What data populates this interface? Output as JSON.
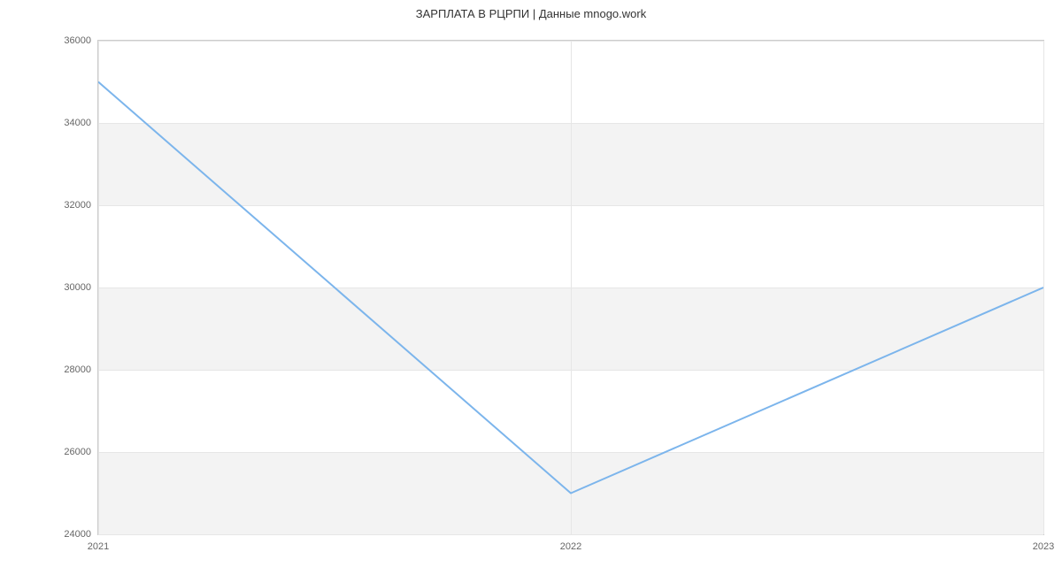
{
  "chart": {
    "type": "line",
    "title": "ЗАРПЛАТА В РЦРПИ | Данные mnogo.work",
    "title_fontsize": 13,
    "title_color": "#333333",
    "background_color": "#ffffff",
    "plot_border_color": "#cccccc",
    "grid_color": "#e6e6e6",
    "stripe_color": "#f3f3f3",
    "x": {
      "ticks": [
        "2021",
        "2022",
        "2023"
      ],
      "positions_pct": [
        0,
        50,
        100
      ],
      "label_fontsize": 11,
      "label_color": "#666666"
    },
    "y": {
      "min": 24000,
      "max": 36000,
      "tick_step": 2000,
      "ticks": [
        24000,
        26000,
        28000,
        30000,
        32000,
        34000,
        36000
      ],
      "label_fontsize": 11,
      "label_color": "#666666"
    },
    "stripes": [
      {
        "from": 24000,
        "to": 26000,
        "color": "#f3f3f3"
      },
      {
        "from": 28000,
        "to": 30000,
        "color": "#f3f3f3"
      },
      {
        "from": 32000,
        "to": 34000,
        "color": "#f3f3f3"
      }
    ],
    "series": [
      {
        "x": [
          2021,
          2022,
          2023
        ],
        "y": [
          35000,
          25000,
          30000
        ],
        "color": "#7cb5ec",
        "line_width": 2
      }
    ]
  }
}
